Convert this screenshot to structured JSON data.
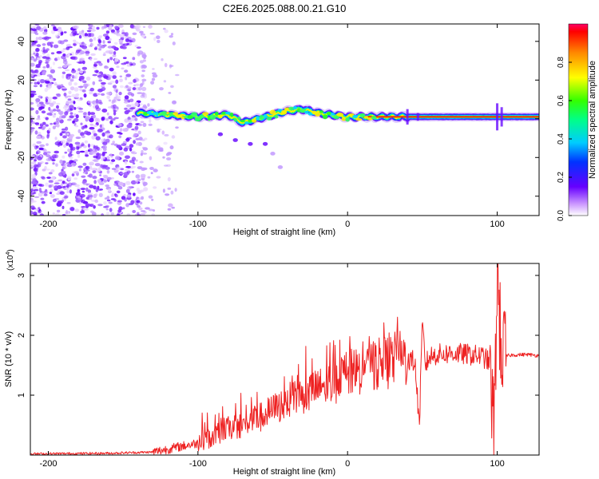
{
  "title": "C2E6.2025.088.00.21.G10",
  "chart_data": [
    {
      "type": "heatmap",
      "xlabel": "Height of straight line (km)",
      "ylabel": "Frequency (Hz)",
      "xlim": [
        -212,
        128
      ],
      "ylim": [
        -50,
        49
      ],
      "x_ticks": [
        -200,
        -100,
        0,
        100
      ],
      "y_ticks": [
        -40,
        -20,
        0,
        20,
        40
      ],
      "colorbar": {
        "label": "Normalized spectral amplitude",
        "range": [
          0,
          1
        ],
        "ticks": [
          "0.0",
          "0.2",
          "0.4",
          "0.6",
          "0.8"
        ]
      },
      "signal_track": {
        "x": [
          -140,
          -120,
          -100,
          -80,
          -70,
          -60,
          -50,
          -40,
          -30,
          -20,
          -10,
          0,
          10,
          20,
          40,
          60,
          80,
          100,
          128
        ],
        "freq": [
          3,
          2,
          1,
          2,
          -2,
          0,
          2,
          4,
          5,
          3,
          2,
          1,
          1,
          1,
          1,
          1,
          1,
          1,
          1
        ]
      },
      "secondary_track": {
        "x": [
          -85,
          -75,
          -65,
          -55,
          -50,
          -45
        ],
        "freq": [
          -8,
          -11,
          -13,
          -13,
          -18,
          -25
        ]
      },
      "noise_region_x": [
        -212,
        -135
      ]
    },
    {
      "type": "line",
      "xlabel": "Height of straight line (km)",
      "ylabel": "SNR (10 * v/v)",
      "y_multiplier": "(x10^4)",
      "xlim": [
        -212,
        128
      ],
      "ylim": [
        0,
        3.2
      ],
      "x_ticks": [
        -200,
        -100,
        0,
        100
      ],
      "y_ticks": [
        1,
        2,
        3
      ],
      "series": [
        {
          "color": "#ee2222",
          "x": [
            -212,
            -160,
            -130,
            -120,
            -110,
            -100,
            -90,
            -80,
            -70,
            -60,
            -50,
            -40,
            -30,
            -20,
            -10,
            0,
            10,
            20,
            30,
            40,
            45,
            48,
            50,
            52,
            55,
            60,
            70,
            80,
            90,
            95,
            98,
            100,
            102,
            104,
            110,
            120,
            128
          ],
          "y": [
            0.02,
            0.03,
            0.05,
            0.1,
            0.15,
            0.2,
            0.3,
            0.45,
            0.5,
            0.6,
            0.75,
            0.9,
            1.0,
            1.1,
            1.2,
            1.35,
            1.45,
            1.5,
            1.58,
            1.62,
            1.55,
            0.5,
            2.2,
            1.5,
            1.65,
            1.68,
            1.7,
            1.68,
            1.65,
            1.55,
            0.3,
            3.1,
            2.0,
            1.65,
            1.67,
            1.68,
            1.66
          ]
        }
      ]
    }
  ]
}
